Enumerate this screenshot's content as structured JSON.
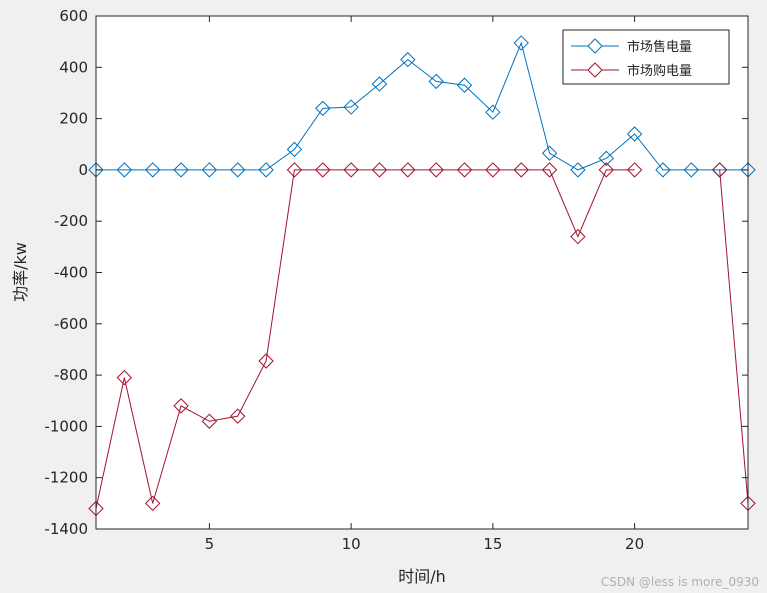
{
  "chart_data": {
    "type": "line",
    "title": "",
    "xlabel": "时间/h",
    "ylabel": "功率/kw",
    "xlim": [
      1,
      24
    ],
    "ylim": [
      -1400,
      600
    ],
    "xticks": [
      5,
      10,
      15,
      20
    ],
    "yticks": [
      600,
      400,
      200,
      0,
      -200,
      -400,
      -600,
      -800,
      -1000,
      -1200,
      -1400
    ],
    "grid": false,
    "legend_position": "top-right",
    "x": [
      1,
      2,
      3,
      4,
      5,
      6,
      7,
      8,
      9,
      10,
      11,
      12,
      13,
      14,
      15,
      16,
      17,
      18,
      19,
      20,
      21,
      22,
      23,
      24
    ],
    "series": [
      {
        "name": "市场售电量",
        "color": "#0072bd",
        "marker": "diamond",
        "values": [
          0,
          0,
          0,
          0,
          0,
          0,
          0,
          80,
          240,
          245,
          335,
          430,
          345,
          330,
          225,
          495,
          65,
          0,
          45,
          140,
          0,
          0,
          0,
          0
        ]
      },
      {
        "name": "市场购电量",
        "color": "#a2142f",
        "marker": "diamond",
        "values": [
          -1320,
          -810,
          -1300,
          -920,
          -980,
          -960,
          -745,
          0,
          0,
          0,
          0,
          0,
          0,
          0,
          0,
          0,
          0,
          -260,
          0,
          0,
          null,
          null,
          0,
          -1300
        ]
      }
    ]
  },
  "watermark": "CSDN @less is more_0930"
}
